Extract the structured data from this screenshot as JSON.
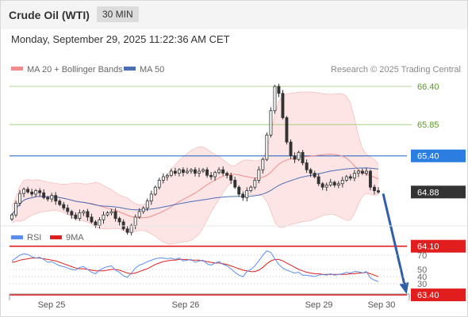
{
  "header": {
    "title": "Crude Oil (WTI)",
    "interval": "30 MIN",
    "datetime": "Monday, September 29, 2025 11:22:36 AM CET"
  },
  "legend": {
    "bollinger_label": "MA 20 + Bollinger Bands",
    "ma50_label": "MA 50",
    "source": "Research © 2025 Trading Central",
    "rsi_label": "RSI",
    "rsi_ma_label": "9MA"
  },
  "colors": {
    "candle": "#333333",
    "ma20": "#f28c8c",
    "bollinger_fill": "#fde2e2",
    "ma50": "#4a6fb5",
    "resistance_line": "#9cc96b",
    "pivot_line": "#1f5fbf",
    "pivot_tag": "#2a7de1",
    "support_line": "#e11d1d",
    "support_tag": "#e11d1d",
    "current_tag": "#333333",
    "rsi": "#5b8def",
    "rsi_ma": "#e02020",
    "arrow": "#2f5fa8"
  },
  "chart_data": [
    {
      "type": "candlestick",
      "title": "Crude Oil (WTI)",
      "interval": "30 MIN",
      "x_labels": [
        "Sep 25",
        "Sep 26",
        "Sep 29",
        "Sep 30"
      ],
      "ylim": [
        63.3,
        66.5
      ],
      "closes": [
        64.55,
        64.72,
        64.86,
        64.92,
        64.88,
        64.85,
        64.9,
        64.87,
        64.8,
        64.78,
        64.83,
        64.75,
        64.7,
        64.65,
        64.6,
        64.55,
        64.5,
        64.58,
        64.6,
        64.52,
        64.45,
        64.4,
        64.48,
        64.55,
        64.58,
        64.6,
        64.5,
        64.45,
        64.35,
        64.3,
        64.4,
        64.52,
        64.6,
        64.65,
        64.75,
        64.85,
        64.95,
        65.05,
        65.1,
        65.12,
        65.18,
        65.15,
        65.2,
        65.16,
        65.18,
        65.2,
        65.15,
        65.18,
        65.2,
        65.12,
        65.1,
        65.16,
        65.2,
        65.15,
        65.12,
        65.05,
        64.95,
        64.85,
        64.8,
        64.9,
        64.95,
        65.05,
        65.2,
        65.35,
        65.7,
        66.05,
        66.4,
        66.3,
        65.95,
        65.6,
        65.4,
        65.35,
        65.45,
        65.3,
        65.2,
        65.15,
        65.1,
        65.0,
        64.95,
        64.98,
        65.02,
        64.98,
        65.0,
        65.05,
        65.1,
        65.08,
        65.15,
        65.18,
        65.15,
        65.18,
        64.95,
        64.9,
        64.88
      ],
      "levels": [
        {
          "role": "resistance",
          "value": "66.40"
        },
        {
          "role": "resistance",
          "value": "65.85"
        },
        {
          "role": "pivot",
          "value": "65.40"
        },
        {
          "role": "current",
          "value": "64.88"
        },
        {
          "role": "support",
          "value": "64.10"
        },
        {
          "role": "support",
          "value": "63.40"
        }
      ],
      "overlays": [
        "MA 20 + Bollinger Bands",
        "MA 50"
      ],
      "legend_position": "top-left"
    },
    {
      "type": "line",
      "indicator": "RSI",
      "ylim": [
        25,
        80
      ],
      "y_ticks": [
        "70",
        "50",
        "40",
        "30"
      ],
      "rsi": [
        62,
        66,
        70,
        72,
        71,
        68,
        66,
        67,
        64,
        60,
        61,
        58,
        55,
        54,
        52,
        50,
        49,
        53,
        54,
        50,
        46,
        44,
        49,
        52,
        54,
        55,
        49,
        46,
        41,
        39,
        45,
        52,
        56,
        58,
        61,
        63,
        65,
        66,
        66,
        65,
        66,
        64,
        66,
        62,
        63,
        64,
        60,
        62,
        63,
        58,
        56,
        59,
        61,
        57,
        55,
        51,
        46,
        42,
        40,
        47,
        50,
        55,
        62,
        70,
        76,
        74,
        65,
        57,
        52,
        49,
        47,
        45,
        46,
        42,
        42,
        41,
        40,
        42,
        43,
        42,
        44,
        42,
        43,
        44,
        46,
        45,
        47,
        47,
        45,
        47,
        38,
        35,
        33
      ],
      "rsi_ma": [
        60,
        61,
        63,
        64,
        65,
        66,
        66,
        66,
        65,
        64,
        63,
        62,
        60,
        58,
        56,
        54,
        52,
        51,
        51,
        50,
        49,
        48,
        48,
        48,
        49,
        50,
        50,
        49,
        47,
        45,
        44,
        45,
        47,
        49,
        51,
        54,
        57,
        59,
        61,
        62,
        63,
        63,
        64,
        64,
        64,
        63,
        63,
        63,
        62,
        61,
        60,
        59,
        59,
        58,
        57,
        55,
        53,
        51,
        49,
        48,
        47,
        47,
        49,
        53,
        58,
        62,
        64,
        64,
        62,
        59,
        56,
        53,
        50,
        48,
        46,
        45,
        44,
        44,
        43,
        43,
        43,
        43,
        43,
        43,
        43,
        44,
        44,
        45,
        45,
        46,
        44,
        42,
        40
      ],
      "series": [
        {
          "name": "RSI"
        },
        {
          "name": "9MA"
        }
      ],
      "legend_position": "top-left"
    }
  ]
}
